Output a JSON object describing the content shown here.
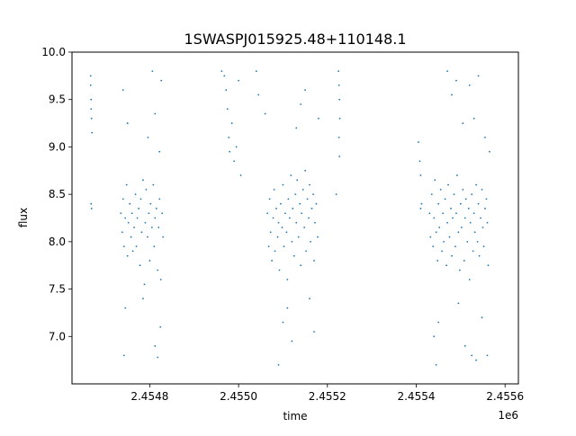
{
  "chart_data": {
    "type": "scatter",
    "title": "1SWASPJ015925.48+110148.1",
    "xlabel": "time",
    "ylabel": "flux",
    "x_offset_label": "1e6",
    "xlim": [
      2454625,
      2455630
    ],
    "ylim": [
      6.5,
      10.0
    ],
    "x_ticks": [
      2454800,
      2455000,
      2455200,
      2455400,
      2455600
    ],
    "x_tick_labels": [
      "2.4548",
      "2.4550",
      "2.4552",
      "2.4554",
      "2.4556"
    ],
    "y_ticks": [
      7.0,
      7.5,
      8.0,
      8.5,
      9.0,
      9.5,
      10.0
    ],
    "y_tick_labels": [
      "7.0",
      "7.5",
      "8.0",
      "8.5",
      "9.0",
      "9.5",
      "10.0"
    ],
    "grid": false,
    "marker_color": "#1f77b4",
    "series": [
      {
        "values": [
          [
            2454667,
            9.75
          ],
          [
            2454667,
            9.65
          ],
          [
            2454668,
            9.5
          ],
          [
            2454668,
            9.4
          ],
          [
            2454669,
            9.3
          ],
          [
            2454670,
            9.15
          ],
          [
            2454668,
            8.4
          ],
          [
            2454669,
            8.35
          ],
          [
            2454735,
            8.3
          ],
          [
            2454738,
            8.1
          ],
          [
            2454740,
            8.45
          ],
          [
            2454742,
            7.95
          ],
          [
            2454745,
            8.25
          ],
          [
            2454748,
            8.6
          ],
          [
            2454750,
            7.85
          ],
          [
            2454752,
            8.2
          ],
          [
            2454755,
            8.4
          ],
          [
            2454758,
            8.05
          ],
          [
            2454760,
            8.3
          ],
          [
            2454762,
            7.9
          ],
          [
            2454740,
            9.6
          ],
          [
            2454745,
            7.3
          ],
          [
            2454742,
            6.8
          ],
          [
            2454750,
            9.25
          ],
          [
            2454765,
            8.15
          ],
          [
            2454768,
            8.5
          ],
          [
            2454770,
            7.95
          ],
          [
            2454772,
            8.25
          ],
          [
            2454775,
            8.35
          ],
          [
            2454778,
            7.75
          ],
          [
            2454780,
            8.45
          ],
          [
            2454782,
            8.1
          ],
          [
            2454785,
            8.65
          ],
          [
            2454788,
            7.55
          ],
          [
            2454790,
            8.2
          ],
          [
            2454792,
            8.55
          ],
          [
            2454795,
            8.05
          ],
          [
            2454798,
            8.3
          ],
          [
            2454800,
            7.8
          ],
          [
            2454802,
            8.4
          ],
          [
            2454805,
            8.15
          ],
          [
            2454808,
            8.6
          ],
          [
            2454810,
            7.95
          ],
          [
            2454812,
            8.25
          ],
          [
            2454815,
            8.35
          ],
          [
            2454818,
            7.7
          ],
          [
            2454820,
            8.15
          ],
          [
            2454822,
            8.45
          ],
          [
            2454825,
            7.6
          ],
          [
            2454828,
            8.3
          ],
          [
            2454830,
            8.05
          ],
          [
            2454806,
            9.8
          ],
          [
            2454812,
            9.35
          ],
          [
            2454818,
            6.78
          ],
          [
            2454824,
            7.1
          ],
          [
            2454826,
            9.7
          ],
          [
            2454822,
            8.95
          ],
          [
            2454812,
            6.9
          ],
          [
            2454796,
            9.1
          ],
          [
            2454785,
            7.4
          ],
          [
            2454962,
            9.8
          ],
          [
            2454968,
            9.75
          ],
          [
            2454972,
            9.6
          ],
          [
            2454975,
            9.4
          ],
          [
            2454978,
            9.1
          ],
          [
            2454980,
            8.95
          ],
          [
            2454985,
            9.25
          ],
          [
            2454990,
            8.85
          ],
          [
            2454995,
            9.0
          ],
          [
            2455000,
            9.7
          ],
          [
            2455005,
            8.7
          ],
          [
            2455040,
            9.8
          ],
          [
            2455045,
            9.55
          ],
          [
            2455060,
            9.35
          ],
          [
            2455065,
            8.3
          ],
          [
            2455068,
            7.95
          ],
          [
            2455070,
            8.45
          ],
          [
            2455072,
            8.1
          ],
          [
            2455075,
            7.8
          ],
          [
            2455078,
            8.25
          ],
          [
            2455080,
            8.55
          ],
          [
            2455082,
            7.9
          ],
          [
            2455085,
            8.35
          ],
          [
            2455088,
            8.05
          ],
          [
            2455090,
            8.2
          ],
          [
            2455092,
            7.7
          ],
          [
            2455095,
            8.4
          ],
          [
            2455098,
            8.15
          ],
          [
            2455100,
            8.6
          ],
          [
            2455102,
            7.95
          ],
          [
            2455105,
            8.3
          ],
          [
            2455108,
            8.1
          ],
          [
            2455110,
            7.6
          ],
          [
            2455112,
            8.45
          ],
          [
            2455115,
            8.25
          ],
          [
            2455118,
            8.7
          ],
          [
            2455120,
            8.0
          ],
          [
            2455122,
            8.35
          ],
          [
            2455125,
            7.85
          ],
          [
            2455128,
            8.5
          ],
          [
            2455130,
            8.2
          ],
          [
            2455132,
            8.65
          ],
          [
            2455135,
            8.05
          ],
          [
            2455138,
            8.4
          ],
          [
            2455140,
            7.75
          ],
          [
            2455142,
            8.3
          ],
          [
            2455145,
            8.55
          ],
          [
            2455148,
            8.15
          ],
          [
            2455150,
            8.75
          ],
          [
            2455152,
            7.9
          ],
          [
            2455155,
            8.45
          ],
          [
            2455158,
            8.25
          ],
          [
            2455160,
            8.6
          ],
          [
            2455162,
            8.0
          ],
          [
            2455165,
            8.35
          ],
          [
            2455168,
            8.5
          ],
          [
            2455170,
            7.8
          ],
          [
            2455172,
            8.2
          ],
          [
            2455175,
            8.4
          ],
          [
            2455178,
            8.05
          ],
          [
            2455090,
            6.7
          ],
          [
            2455100,
            7.15
          ],
          [
            2455110,
            7.3
          ],
          [
            2455120,
            6.95
          ],
          [
            2455130,
            9.2
          ],
          [
            2455140,
            9.45
          ],
          [
            2455150,
            9.6
          ],
          [
            2455160,
            7.4
          ],
          [
            2455170,
            7.05
          ],
          [
            2455180,
            9.3
          ],
          [
            2455225,
            9.8
          ],
          [
            2455226,
            9.65
          ],
          [
            2455227,
            9.5
          ],
          [
            2455228,
            9.3
          ],
          [
            2455226,
            9.1
          ],
          [
            2455227,
            8.9
          ],
          [
            2455220,
            8.5
          ],
          [
            2455405,
            9.05
          ],
          [
            2455408,
            8.85
          ],
          [
            2455410,
            8.7
          ],
          [
            2455412,
            8.4
          ],
          [
            2455410,
            8.35
          ],
          [
            2455430,
            8.3
          ],
          [
            2455432,
            8.05
          ],
          [
            2455435,
            8.5
          ],
          [
            2455438,
            7.95
          ],
          [
            2455440,
            8.25
          ],
          [
            2455442,
            8.65
          ],
          [
            2455445,
            8.1
          ],
          [
            2455448,
            7.8
          ],
          [
            2455450,
            8.4
          ],
          [
            2455452,
            8.15
          ],
          [
            2455455,
            8.55
          ],
          [
            2455458,
            7.9
          ],
          [
            2455460,
            8.3
          ],
          [
            2455462,
            8.0
          ],
          [
            2455465,
            8.45
          ],
          [
            2455468,
            7.75
          ],
          [
            2455470,
            8.2
          ],
          [
            2455472,
            8.6
          ],
          [
            2455475,
            8.05
          ],
          [
            2455478,
            8.35
          ],
          [
            2455480,
            7.85
          ],
          [
            2455482,
            8.25
          ],
          [
            2455485,
            8.5
          ],
          [
            2455488,
            7.95
          ],
          [
            2455490,
            8.3
          ],
          [
            2455492,
            8.7
          ],
          [
            2455495,
            8.1
          ],
          [
            2455498,
            7.7
          ],
          [
            2455500,
            8.4
          ],
          [
            2455502,
            8.15
          ],
          [
            2455505,
            8.55
          ],
          [
            2455508,
            7.8
          ],
          [
            2455510,
            8.25
          ],
          [
            2455512,
            8.45
          ],
          [
            2455515,
            8.0
          ],
          [
            2455518,
            8.35
          ],
          [
            2455520,
            7.6
          ],
          [
            2455522,
            8.2
          ],
          [
            2455525,
            8.5
          ],
          [
            2455528,
            7.9
          ],
          [
            2455530,
            8.3
          ],
          [
            2455532,
            8.1
          ],
          [
            2455535,
            8.6
          ],
          [
            2455538,
            8.0
          ],
          [
            2455540,
            8.4
          ],
          [
            2455542,
            7.85
          ],
          [
            2455545,
            8.25
          ],
          [
            2455548,
            8.55
          ],
          [
            2455550,
            8.15
          ],
          [
            2455552,
            7.95
          ],
          [
            2455555,
            8.35
          ],
          [
            2455558,
            8.45
          ],
          [
            2455560,
            8.2
          ],
          [
            2455562,
            7.75
          ],
          [
            2455440,
            7.0
          ],
          [
            2455445,
            6.7
          ],
          [
            2455450,
            7.15
          ],
          [
            2455470,
            9.8
          ],
          [
            2455480,
            9.55
          ],
          [
            2455490,
            9.7
          ],
          [
            2455495,
            7.35
          ],
          [
            2455505,
            9.25
          ],
          [
            2455510,
            6.9
          ],
          [
            2455520,
            9.65
          ],
          [
            2455525,
            6.8
          ],
          [
            2455530,
            9.3
          ],
          [
            2455535,
            6.75
          ],
          [
            2455540,
            9.75
          ],
          [
            2455548,
            7.2
          ],
          [
            2455555,
            9.1
          ],
          [
            2455560,
            6.8
          ],
          [
            2455565,
            8.95
          ]
        ]
      }
    ]
  }
}
